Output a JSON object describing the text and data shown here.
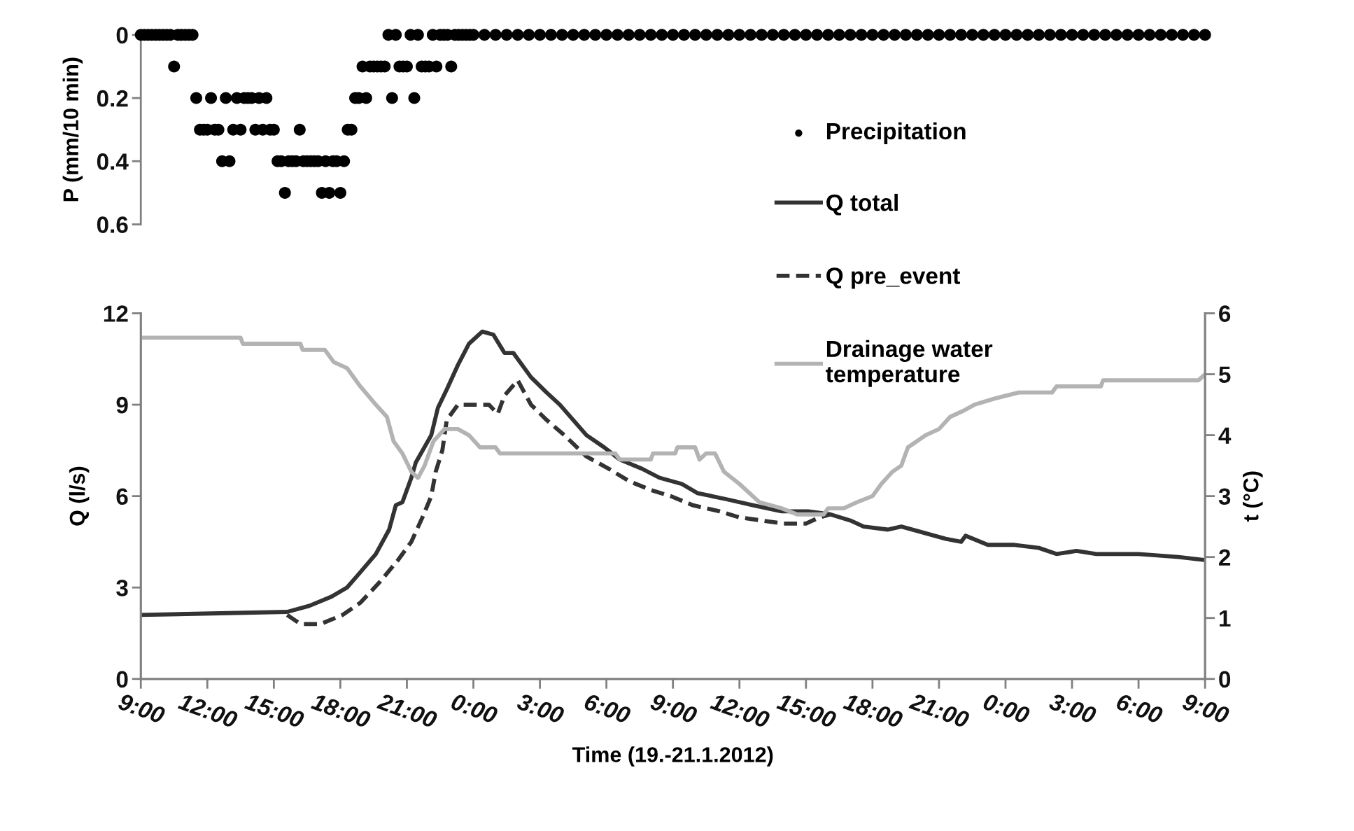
{
  "chart_data": [
    {
      "type": "scatter",
      "ylabel": "P (mm/10 min)",
      "ylim": [
        0.6,
        0
      ],
      "yticks": [
        0,
        0.2,
        0.4,
        0.6
      ],
      "tick_labels": "y",
      "marker": "circle",
      "legend": "right",
      "xlim": [
        "2012-01-19T09:00",
        "2012-01-21T09:00"
      ],
      "x": [
        "2012-01-19T09:00",
        "2012-01-19T09:10",
        "2012-01-19T09:20",
        "2012-01-19T09:30",
        "2012-01-19T09:40",
        "2012-01-19T09:50",
        "2012-01-19T10:00",
        "2012-01-19T10:10",
        "2012-01-19T10:20",
        "2012-01-19T10:30",
        "2012-01-19T10:40",
        "2012-01-19T10:50",
        "2012-01-19T11:00",
        "2012-01-19T11:10",
        "2012-01-19T11:20",
        "2012-01-19T11:30",
        "2012-01-19T11:40",
        "2012-01-19T11:50",
        "2012-01-19T12:00",
        "2012-01-19T12:10",
        "2012-01-19T12:20",
        "2012-01-19T12:30",
        "2012-01-19T12:40",
        "2012-01-19T12:50",
        "2012-01-19T13:00",
        "2012-01-19T13:10",
        "2012-01-19T13:20",
        "2012-01-19T13:30",
        "2012-01-19T13:40",
        "2012-01-19T13:50",
        "2012-01-19T14:00",
        "2012-01-19T14:10",
        "2012-01-19T14:20",
        "2012-01-19T14:30",
        "2012-01-19T14:40",
        "2012-01-19T14:50",
        "2012-01-19T15:00",
        "2012-01-19T15:10",
        "2012-01-19T15:20",
        "2012-01-19T15:30",
        "2012-01-19T15:40",
        "2012-01-19T15:50",
        "2012-01-19T16:00",
        "2012-01-19T16:10",
        "2012-01-19T16:20",
        "2012-01-19T16:30",
        "2012-01-19T16:40",
        "2012-01-19T16:50",
        "2012-01-19T17:00",
        "2012-01-19T17:10",
        "2012-01-19T17:20",
        "2012-01-19T17:30",
        "2012-01-19T17:40",
        "2012-01-19T17:50",
        "2012-01-19T18:00",
        "2012-01-19T18:10",
        "2012-01-19T18:20",
        "2012-01-19T18:30",
        "2012-01-19T18:40",
        "2012-01-19T18:50",
        "2012-01-19T19:00",
        "2012-01-19T19:10",
        "2012-01-19T19:20",
        "2012-01-19T19:30",
        "2012-01-19T19:40",
        "2012-01-19T19:50",
        "2012-01-19T20:00",
        "2012-01-19T20:10",
        "2012-01-19T20:20",
        "2012-01-19T20:30",
        "2012-01-19T20:40",
        "2012-01-19T20:50",
        "2012-01-19T21:00",
        "2012-01-19T21:10",
        "2012-01-19T21:20",
        "2012-01-19T21:30",
        "2012-01-19T21:40",
        "2012-01-19T21:50",
        "2012-01-19T22:00",
        "2012-01-19T22:10",
        "2012-01-19T22:20",
        "2012-01-19T22:30",
        "2012-01-19T22:40",
        "2012-01-19T22:50",
        "2012-01-19T23:00",
        "2012-01-19T23:10",
        "2012-01-19T23:20",
        "2012-01-19T23:30",
        "2012-01-19T23:40",
        "2012-01-19T23:50",
        "2012-01-20T00:00",
        "2012-01-20T00:30",
        "2012-01-20T01:00",
        "2012-01-20T01:30",
        "2012-01-20T02:00",
        "2012-01-20T02:30",
        "2012-01-20T03:00",
        "2012-01-20T03:30",
        "2012-01-20T04:00",
        "2012-01-20T04:30",
        "2012-01-20T05:00",
        "2012-01-20T05:30",
        "2012-01-20T06:00",
        "2012-01-20T06:30",
        "2012-01-20T07:00",
        "2012-01-20T07:30",
        "2012-01-20T08:00",
        "2012-01-20T08:30",
        "2012-01-20T09:00",
        "2012-01-20T09:30",
        "2012-01-20T10:00",
        "2012-01-20T10:30",
        "2012-01-20T11:00",
        "2012-01-20T11:30",
        "2012-01-20T12:00",
        "2012-01-20T12:30",
        "2012-01-20T13:00",
        "2012-01-20T13:30",
        "2012-01-20T14:00",
        "2012-01-20T14:30",
        "2012-01-20T15:00",
        "2012-01-20T15:30",
        "2012-01-20T16:00",
        "2012-01-20T16:30",
        "2012-01-20T17:00",
        "2012-01-20T17:30",
        "2012-01-20T18:00",
        "2012-01-20T18:30",
        "2012-01-20T19:00",
        "2012-01-20T19:30",
        "2012-01-20T20:00",
        "2012-01-20T20:30",
        "2012-01-20T21:00",
        "2012-01-20T21:30",
        "2012-01-20T22:00",
        "2012-01-20T22:30",
        "2012-01-20T23:00",
        "2012-01-20T23:30",
        "2012-01-21T00:00",
        "2012-01-21T00:30",
        "2012-01-21T01:00",
        "2012-01-21T01:30",
        "2012-01-21T02:00",
        "2012-01-21T02:30",
        "2012-01-21T03:00",
        "2012-01-21T03:30",
        "2012-01-21T04:00",
        "2012-01-21T04:30",
        "2012-01-21T05:00",
        "2012-01-21T05:30",
        "2012-01-21T06:00",
        "2012-01-21T06:30",
        "2012-01-21T07:00",
        "2012-01-21T07:30",
        "2012-01-21T08:00",
        "2012-01-21T08:30",
        "2012-01-21T09:00"
      ],
      "series": [
        {
          "name": "Precipitation",
          "color": "#000000",
          "values": [
            0,
            0,
            0,
            0,
            0,
            0,
            0,
            0,
            0,
            0.1,
            0,
            0,
            0,
            0,
            0,
            0.2,
            0.3,
            0.3,
            0.3,
            0.2,
            0.3,
            0.3,
            0.4,
            0.2,
            0.4,
            0.3,
            0.2,
            0.3,
            0.2,
            0.2,
            0.2,
            0.3,
            0.2,
            0.3,
            0.2,
            0.3,
            0.3,
            0.4,
            0.4,
            0.5,
            0.4,
            0.4,
            0.4,
            0.3,
            0.4,
            0.4,
            0.4,
            0.4,
            0.4,
            0.5,
            0.4,
            0.5,
            0.4,
            0.4,
            0.5,
            0.4,
            0.3,
            0.3,
            0.2,
            0.2,
            0.1,
            0.2,
            0.1,
            0.1,
            0.1,
            0.1,
            0.1,
            0,
            0.2,
            0,
            0.1,
            0.1,
            0.1,
            0,
            0.2,
            0,
            0.1,
            0.1,
            0.1,
            0,
            0.1,
            0,
            0,
            0,
            0.1,
            0,
            0,
            0,
            0,
            0,
            0,
            0,
            0,
            0,
            0,
            0,
            0,
            0,
            0,
            0,
            0,
            0,
            0,
            0,
            0,
            0,
            0,
            0,
            0,
            0,
            0,
            0,
            0,
            0,
            0,
            0,
            0,
            0,
            0,
            0,
            0,
            0,
            0,
            0,
            0,
            0,
            0,
            0,
            0,
            0,
            0,
            0,
            0,
            0,
            0,
            0,
            0,
            0,
            0,
            0,
            0,
            0,
            0,
            0,
            0,
            0,
            0,
            0,
            0,
            0,
            0,
            0,
            0,
            0,
            0,
            0,
            0
          ]
        }
      ]
    },
    {
      "type": "line",
      "xlabel": "Time (19.-21.1.2012)",
      "ylabel": "Q (l/s)",
      "y2label": "t (°C)",
      "legend": "top",
      "xlim": [
        "2012-01-19T09:00",
        "2012-01-21T09:00"
      ],
      "xticks": [
        {
          "value": "2012-01-19T09:00",
          "label": "9:00"
        },
        {
          "value": "2012-01-19T12:00",
          "label": "12:00"
        },
        {
          "value": "2012-01-19T15:00",
          "label": "15:00"
        },
        {
          "value": "2012-01-19T18:00",
          "label": "18:00"
        },
        {
          "value": "2012-01-19T21:00",
          "label": "21:00"
        },
        {
          "value": "2012-01-20T00:00",
          "label": "0:00"
        },
        {
          "value": "2012-01-20T03:00",
          "label": "3:00"
        },
        {
          "value": "2012-01-20T06:00",
          "label": "6:00"
        },
        {
          "value": "2012-01-20T09:00",
          "label": "9:00"
        },
        {
          "value": "2012-01-20T12:00",
          "label": "12:00"
        },
        {
          "value": "2012-01-20T15:00",
          "label": "15:00"
        },
        {
          "value": "2012-01-20T18:00",
          "label": "18:00"
        },
        {
          "value": "2012-01-20T21:00",
          "label": "21:00"
        },
        {
          "value": "2012-01-21T00:00",
          "label": "0:00"
        },
        {
          "value": "2012-01-21T03:00",
          "label": "3:00"
        },
        {
          "value": "2012-01-21T06:00",
          "label": "6:00"
        },
        {
          "value": "2012-01-21T09:00",
          "label": "9:00"
        }
      ],
      "ylim": [
        0,
        12
      ],
      "yticks": [
        0,
        3,
        6,
        9,
        12
      ],
      "y2lim": [
        0,
        6
      ],
      "y2ticks": [
        0,
        1,
        2,
        3,
        4,
        5,
        6
      ],
      "series": [
        {
          "name": "Q total",
          "color": "#333333",
          "line_style": "solid",
          "x": [
            "2012-01-19T09:00",
            "2012-01-19T15:36",
            "2012-01-19T16:36",
            "2012-01-19T17:36",
            "2012-01-19T18:18",
            "2012-01-19T18:54",
            "2012-01-19T19:36",
            "2012-01-19T20:12",
            "2012-01-19T20:30",
            "2012-01-19T20:48",
            "2012-01-19T21:12",
            "2012-01-19T21:24",
            "2012-01-19T22:06",
            "2012-01-19T22:24",
            "2012-01-19T22:48",
            "2012-01-19T23:18",
            "2012-01-19T23:48",
            "2012-01-20T00:24",
            "2012-01-20T00:54",
            "2012-01-20T01:24",
            "2012-01-20T01:48",
            "2012-01-20T02:36",
            "2012-01-20T03:18",
            "2012-01-20T03:54",
            "2012-01-20T04:30",
            "2012-01-20T05:06",
            "2012-01-20T05:54",
            "2012-01-20T06:36",
            "2012-01-20T07:36",
            "2012-01-20T08:24",
            "2012-01-20T09:24",
            "2012-01-20T10:06",
            "2012-01-20T11:24",
            "2012-01-20T12:36",
            "2012-01-20T13:54",
            "2012-01-20T15:06",
            "2012-01-20T16:06",
            "2012-01-20T17:00",
            "2012-01-20T17:36",
            "2012-01-20T18:42",
            "2012-01-20T19:18",
            "2012-01-20T20:18",
            "2012-01-20T21:18",
            "2012-01-20T22:00",
            "2012-01-20T22:12",
            "2012-01-20T23:12",
            "2012-01-21T00:24",
            "2012-01-21T01:30",
            "2012-01-21T02:18",
            "2012-01-21T03:12",
            "2012-01-21T04:06",
            "2012-01-21T06:00",
            "2012-01-21T07:48",
            "2012-01-21T09:00"
          ],
          "values": [
            2.1,
            2.2,
            2.4,
            2.7,
            3.0,
            3.5,
            4.1,
            4.9,
            5.7,
            5.8,
            6.6,
            7.1,
            8.0,
            8.9,
            9.5,
            10.3,
            11.0,
            11.4,
            11.3,
            10.7,
            10.7,
            9.9,
            9.4,
            9.0,
            8.5,
            8.0,
            7.6,
            7.2,
            6.9,
            6.6,
            6.4,
            6.1,
            5.9,
            5.7,
            5.5,
            5.5,
            5.4,
            5.2,
            5.0,
            4.9,
            5.0,
            4.8,
            4.6,
            4.5,
            4.7,
            4.4,
            4.4,
            4.3,
            4.1,
            4.2,
            4.1,
            4.1,
            4.0,
            3.9
          ]
        },
        {
          "name": "Q pre_event",
          "color": "#333333",
          "line_style": "dashed",
          "x": [
            "2012-01-19T15:36",
            "2012-01-19T16:12",
            "2012-01-19T17:06",
            "2012-01-19T18:06",
            "2012-01-19T18:54",
            "2012-01-19T19:48",
            "2012-01-19T20:36",
            "2012-01-19T21:12",
            "2012-01-19T21:42",
            "2012-01-19T22:06",
            "2012-01-19T22:18",
            "2012-01-19T22:36",
            "2012-01-19T22:48",
            "2012-01-19T23:18",
            "2012-01-20T00:06",
            "2012-01-20T00:42",
            "2012-01-20T01:06",
            "2012-01-20T01:24",
            "2012-01-20T02:00",
            "2012-01-20T02:36",
            "2012-01-20T03:18",
            "2012-01-20T04:06",
            "2012-01-20T05:06",
            "2012-01-20T06:06",
            "2012-01-20T07:00",
            "2012-01-20T08:00",
            "2012-01-20T08:54",
            "2012-01-20T09:54",
            "2012-01-20T11:06",
            "2012-01-20T12:00",
            "2012-01-20T13:00",
            "2012-01-20T14:00",
            "2012-01-20T15:00",
            "2012-01-20T15:36",
            "2012-01-20T16:06"
          ],
          "values": [
            2.1,
            1.8,
            1.8,
            2.1,
            2.5,
            3.2,
            3.9,
            4.5,
            5.3,
            6.0,
            6.8,
            7.5,
            8.5,
            9.0,
            9.0,
            9.0,
            8.7,
            9.3,
            9.8,
            9.0,
            8.5,
            8.0,
            7.3,
            6.9,
            6.5,
            6.2,
            6.0,
            5.7,
            5.5,
            5.3,
            5.2,
            5.1,
            5.1,
            5.3,
            5.4
          ]
        },
        {
          "name": "Drainage water\ntemperature",
          "color": "#b3b3b3",
          "line_style": "solid",
          "axis": "y2",
          "x": [
            "2012-01-19T09:00",
            "2012-01-19T13:30",
            "2012-01-19T13:36",
            "2012-01-19T16:12",
            "2012-01-19T16:18",
            "2012-01-19T17:18",
            "2012-01-19T17:42",
            "2012-01-19T18:18",
            "2012-01-19T18:54",
            "2012-01-19T19:36",
            "2012-01-19T20:06",
            "2012-01-19T20:24",
            "2012-01-19T20:48",
            "2012-01-19T21:12",
            "2012-01-19T21:30",
            "2012-01-19T21:48",
            "2012-01-19T22:12",
            "2012-01-19T22:42",
            "2012-01-19T23:18",
            "2012-01-19T23:48",
            "2012-01-20T00:18",
            "2012-01-20T01:00",
            "2012-01-20T01:12",
            "2012-01-20T06:24",
            "2012-01-20T06:36",
            "2012-01-20T08:00",
            "2012-01-20T08:06",
            "2012-01-20T09:06",
            "2012-01-20T09:12",
            "2012-01-20T10:00",
            "2012-01-20T10:12",
            "2012-01-20T10:30",
            "2012-01-20T10:54",
            "2012-01-20T11:18",
            "2012-01-20T12:00",
            "2012-01-20T12:54",
            "2012-01-20T13:54",
            "2012-01-20T14:36",
            "2012-01-20T15:48",
            "2012-01-20T16:00",
            "2012-01-20T16:42",
            "2012-01-20T17:18",
            "2012-01-20T18:00",
            "2012-01-20T18:24",
            "2012-01-20T18:54",
            "2012-01-20T19:18",
            "2012-01-20T19:36",
            "2012-01-20T20:24",
            "2012-01-20T21:00",
            "2012-01-20T21:30",
            "2012-01-20T22:06",
            "2012-01-20T22:36",
            "2012-01-20T23:30",
            "2012-01-21T00:36",
            "2012-01-21T02:06",
            "2012-01-21T02:18",
            "2012-01-21T04:18",
            "2012-01-21T04:24",
            "2012-01-21T08:42",
            "2012-01-21T09:00"
          ],
          "values": [
            5.6,
            5.6,
            5.5,
            5.5,
            5.4,
            5.4,
            5.2,
            5.1,
            4.8,
            4.5,
            4.3,
            3.9,
            3.7,
            3.4,
            3.3,
            3.5,
            3.9,
            4.1,
            4.1,
            4.0,
            3.8,
            3.8,
            3.7,
            3.7,
            3.6,
            3.6,
            3.7,
            3.7,
            3.8,
            3.8,
            3.6,
            3.7,
            3.7,
            3.4,
            3.2,
            2.9,
            2.8,
            2.7,
            2.7,
            2.8,
            2.8,
            2.9,
            3.0,
            3.2,
            3.4,
            3.5,
            3.8,
            4.0,
            4.1,
            4.3,
            4.4,
            4.5,
            4.6,
            4.7,
            4.7,
            4.8,
            4.8,
            4.9,
            4.9,
            5.0
          ]
        }
      ]
    }
  ]
}
